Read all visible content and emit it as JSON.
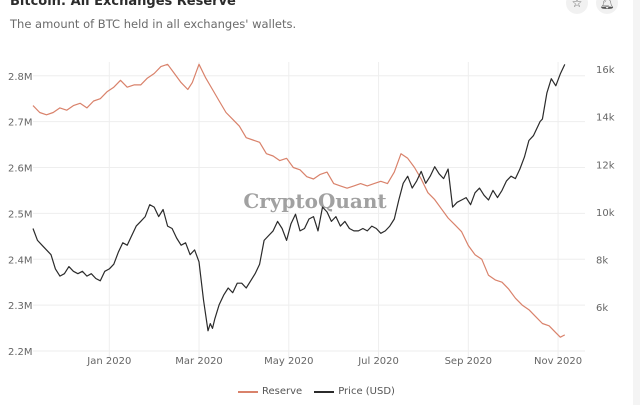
{
  "header": {
    "title": "Bitcoin: All Exchanges Reserve",
    "subtitle": "The amount of BTC held in all exchanges' wallets.",
    "star_icon": "star-icon",
    "bell_icon": "bell-icon"
  },
  "watermark": "CryptoQuant",
  "colors": {
    "reserve": "#d9826b",
    "price": "#2b2b2b",
    "grid": "#eeeeee",
    "axis_text": "#666666"
  },
  "chart_data": {
    "type": "line",
    "title": "Bitcoin: All Exchanges Reserve",
    "subtitle": "The amount of BTC held in all exchanges' wallets.",
    "x_tick_labels": [
      "Jan 2020",
      "Mar 2020",
      "May 2020",
      "Jul 2020",
      "Sep 2020",
      "Nov 2020"
    ],
    "x_tick_months": [
      1,
      3,
      5,
      7,
      9,
      11
    ],
    "xlim_months": [
      -0.7,
      11.6
    ],
    "y_left": {
      "label": "Reserve",
      "ticks": [
        "2.2M",
        "2.3M",
        "2.4M",
        "2.5M",
        "2.6M",
        "2.7M",
        "2.8M"
      ],
      "tick_values": [
        2.2,
        2.3,
        2.4,
        2.5,
        2.6,
        2.7,
        2.8
      ],
      "ylim": [
        2.2,
        2.83
      ]
    },
    "y_right": {
      "label": "Price (USD)",
      "ticks": [
        "6k",
        "8k",
        "10k",
        "12k",
        "14k",
        "16k"
      ],
      "tick_values": [
        6000,
        8000,
        10000,
        12000,
        14000,
        16000
      ],
      "ylim": [
        4150,
        16300
      ]
    },
    "legend": {
      "position": "bottom-center",
      "entries": [
        "Reserve",
        "Price (USD)"
      ]
    },
    "grid": true,
    "series": [
      {
        "name": "Reserve",
        "axis": "left",
        "x": [
          -0.7,
          -0.55,
          -0.4,
          -0.25,
          -0.1,
          0.05,
          0.2,
          0.35,
          0.5,
          0.65,
          0.8,
          0.95,
          1.1,
          1.25,
          1.4,
          1.55,
          1.7,
          1.85,
          2.0,
          2.15,
          2.3,
          2.45,
          2.6,
          2.75,
          2.85,
          3.0,
          3.15,
          3.3,
          3.45,
          3.6,
          3.75,
          3.9,
          4.05,
          4.2,
          4.35,
          4.5,
          4.65,
          4.8,
          4.95,
          5.1,
          5.25,
          5.4,
          5.55,
          5.7,
          5.85,
          6.0,
          6.15,
          6.3,
          6.45,
          6.6,
          6.75,
          6.9,
          7.05,
          7.2,
          7.35,
          7.5,
          7.65,
          7.8,
          7.95,
          8.1,
          8.25,
          8.4,
          8.55,
          8.7,
          8.85,
          9.0,
          9.15,
          9.3,
          9.45,
          9.6,
          9.75,
          9.9,
          10.05,
          10.2,
          10.35,
          10.5,
          10.65,
          10.8,
          10.95,
          11.05,
          11.15
        ],
        "values": [
          2.735,
          2.72,
          2.715,
          2.72,
          2.73,
          2.725,
          2.735,
          2.74,
          2.73,
          2.745,
          2.75,
          2.765,
          2.775,
          2.79,
          2.775,
          2.78,
          2.78,
          2.795,
          2.805,
          2.82,
          2.825,
          2.805,
          2.785,
          2.77,
          2.785,
          2.825,
          2.795,
          2.77,
          2.745,
          2.72,
          2.705,
          2.69,
          2.665,
          2.66,
          2.655,
          2.63,
          2.625,
          2.615,
          2.62,
          2.6,
          2.595,
          2.58,
          2.575,
          2.585,
          2.59,
          2.565,
          2.56,
          2.555,
          2.56,
          2.565,
          2.56,
          2.565,
          2.57,
          2.565,
          2.59,
          2.63,
          2.62,
          2.6,
          2.575,
          2.545,
          2.53,
          2.51,
          2.49,
          2.475,
          2.46,
          2.43,
          2.41,
          2.4,
          2.365,
          2.355,
          2.35,
          2.335,
          2.315,
          2.3,
          2.29,
          2.275,
          2.26,
          2.255,
          2.24,
          2.23,
          2.235
        ]
      },
      {
        "name": "Price (USD)",
        "axis": "right",
        "x": [
          -0.7,
          -0.6,
          -0.5,
          -0.4,
          -0.3,
          -0.2,
          -0.1,
          0.0,
          0.1,
          0.2,
          0.3,
          0.4,
          0.5,
          0.6,
          0.7,
          0.8,
          0.9,
          1.0,
          1.1,
          1.2,
          1.3,
          1.4,
          1.5,
          1.6,
          1.7,
          1.8,
          1.9,
          2.0,
          2.1,
          2.2,
          2.3,
          2.4,
          2.5,
          2.6,
          2.7,
          2.8,
          2.9,
          3.0,
          3.1,
          3.2,
          3.25,
          3.3,
          3.35,
          3.45,
          3.55,
          3.65,
          3.75,
          3.85,
          3.95,
          4.05,
          4.15,
          4.25,
          4.35,
          4.45,
          4.55,
          4.65,
          4.75,
          4.85,
          4.95,
          5.05,
          5.15,
          5.25,
          5.35,
          5.45,
          5.55,
          5.65,
          5.75,
          5.85,
          5.95,
          6.05,
          6.15,
          6.25,
          6.35,
          6.45,
          6.55,
          6.65,
          6.75,
          6.85,
          6.95,
          7.05,
          7.15,
          7.25,
          7.35,
          7.45,
          7.55,
          7.65,
          7.75,
          7.85,
          7.95,
          8.05,
          8.15,
          8.25,
          8.35,
          8.45,
          8.55,
          8.65,
          8.75,
          8.85,
          8.95,
          9.05,
          9.15,
          9.25,
          9.35,
          9.45,
          9.55,
          9.65,
          9.75,
          9.85,
          9.95,
          10.05,
          10.15,
          10.25,
          10.35,
          10.45,
          10.55,
          10.6,
          10.65,
          10.75,
          10.85,
          10.95,
          11.05,
          11.15
        ],
        "values": [
          9300,
          8800,
          8600,
          8400,
          8200,
          7600,
          7300,
          7400,
          7700,
          7500,
          7400,
          7500,
          7300,
          7400,
          7200,
          7100,
          7500,
          7600,
          7800,
          8300,
          8700,
          8600,
          9000,
          9400,
          9600,
          9800,
          10300,
          10200,
          9800,
          10100,
          9400,
          9300,
          8900,
          8600,
          8700,
          8200,
          8400,
          7900,
          6300,
          5000,
          5300,
          5100,
          5500,
          6100,
          6500,
          6800,
          6600,
          7000,
          7000,
          6800,
          7100,
          7400,
          7800,
          8800,
          9000,
          9200,
          9600,
          9300,
          8800,
          9500,
          9900,
          9200,
          9300,
          9700,
          9800,
          9200,
          10200,
          10000,
          9600,
          9800,
          9400,
          9600,
          9300,
          9200,
          9200,
          9300,
          9200,
          9400,
          9300,
          9100,
          9200,
          9400,
          9700,
          10500,
          11200,
          11500,
          11000,
          11300,
          11700,
          11200,
          11500,
          11900,
          11600,
          11400,
          11800,
          10200,
          10400,
          10500,
          10600,
          10300,
          10800,
          11000,
          10700,
          10500,
          10900,
          10600,
          10900,
          11300,
          11500,
          11400,
          11800,
          12300,
          13000,
          13200,
          13600,
          13800,
          13900,
          15000,
          15600,
          15300,
          15800,
          16200
        ]
      }
    ]
  }
}
